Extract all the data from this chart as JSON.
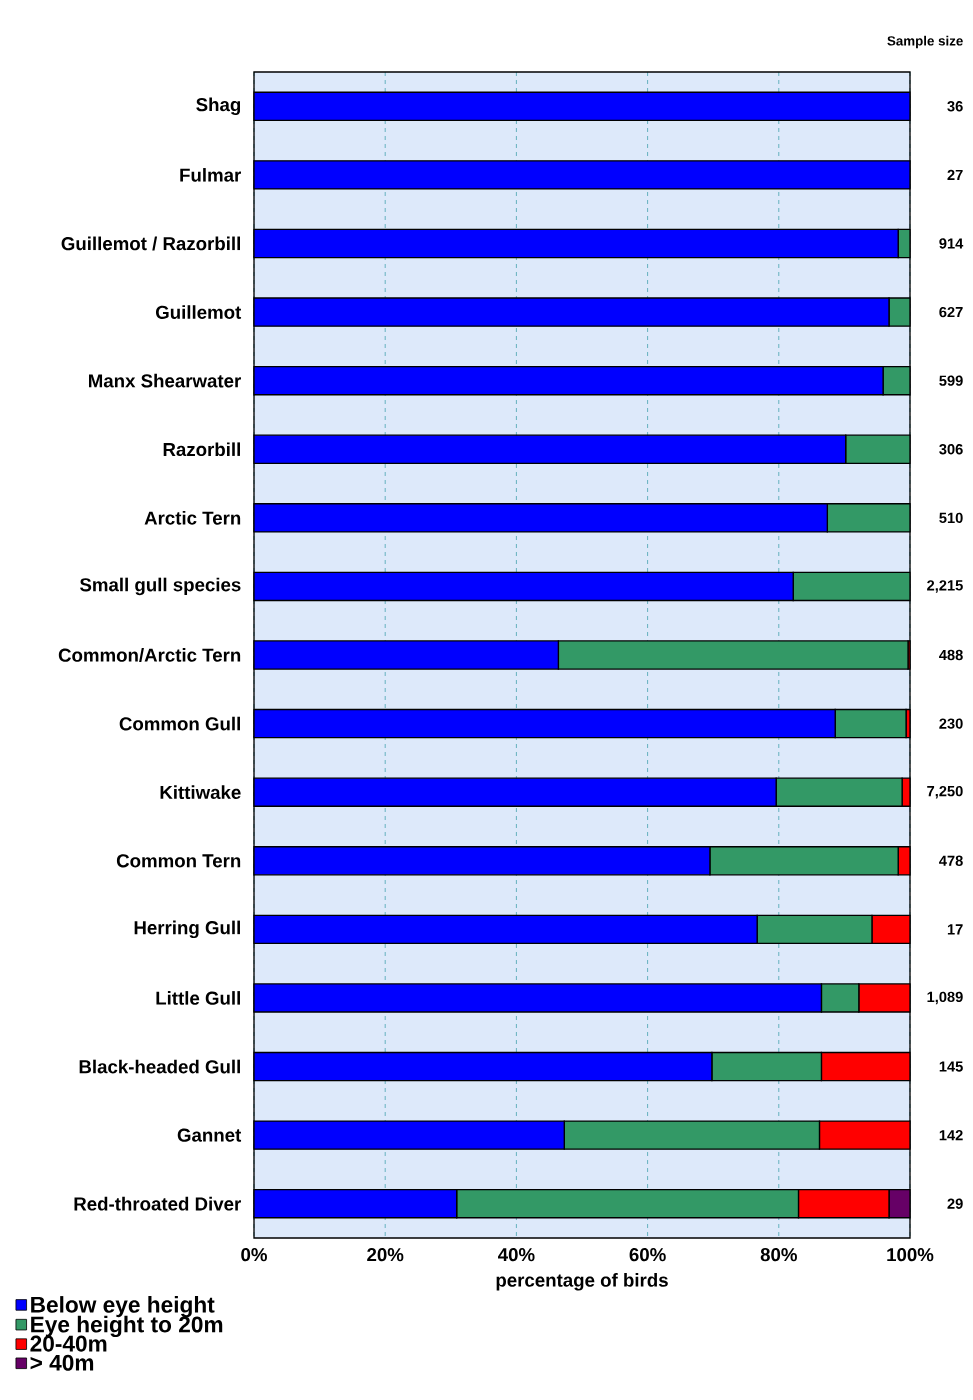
{
  "chart_data": {
    "type": "bar",
    "orientation": "horizontal",
    "stacked": true,
    "xlabel": "percentage of birds",
    "categories": [
      "Shag",
      "Fulmar",
      "Guillemot / Razorbill",
      "Guillemot",
      "Manx Shearwater",
      "Razorbill",
      "Arctic Tern",
      "Small gull species",
      "Common/Arctic Tern",
      "Common Gull",
      "Kittiwake",
      "Common Tern",
      "Herring Gull",
      "Little Gull",
      "Black-headed Gull",
      "Gannet",
      "Red-throated Diver"
    ],
    "series": [
      {
        "name": "Below eye height",
        "color": "#0000ff",
        "values": [
          100,
          100,
          98.2,
          96.8,
          95.9,
          90.2,
          87.4,
          82.2,
          46.4,
          88.6,
          79.6,
          69.5,
          76.7,
          86.5,
          69.8,
          47.3,
          30.9
        ]
      },
      {
        "name": "Eye height to 20m",
        "color": "#339966",
        "values": [
          0,
          0,
          1.8,
          3.2,
          4.1,
          9.8,
          12.6,
          17.8,
          53.3,
          10.8,
          19.2,
          28.7,
          17.5,
          5.7,
          16.7,
          38.9,
          52.1
        ]
      },
      {
        "name": "20-40m",
        "color": "#ff0000",
        "values": [
          0,
          0,
          0,
          0,
          0,
          0,
          0,
          0,
          0.3,
          0.6,
          1.2,
          1.8,
          5.8,
          7.8,
          13.5,
          13.8,
          13.8
        ]
      },
      {
        "name": "> 40m",
        "color": "#660066",
        "values": [
          0,
          0,
          0,
          0,
          0,
          0,
          0,
          0,
          0,
          0,
          0,
          0,
          0,
          0,
          0,
          0,
          3.2
        ]
      }
    ],
    "xlim": [
      0,
      100
    ],
    "xticks": [
      {
        "value": 0,
        "label": "0%"
      },
      {
        "value": 20,
        "label": "20%"
      },
      {
        "value": 40,
        "label": "40%"
      },
      {
        "value": 60,
        "label": "60%"
      },
      {
        "value": 80,
        "label": "80%"
      },
      {
        "value": 100,
        "label": "100%"
      }
    ],
    "grid": "x",
    "legend": "bottom left",
    "annotations": [
      "Sample size",
      "36",
      "27",
      "914",
      "627",
      "599",
      "306",
      "510",
      "2,215",
      "488",
      "230",
      "7,250",
      "478",
      "17",
      "1,089",
      "145",
      "142",
      "29"
    ]
  }
}
